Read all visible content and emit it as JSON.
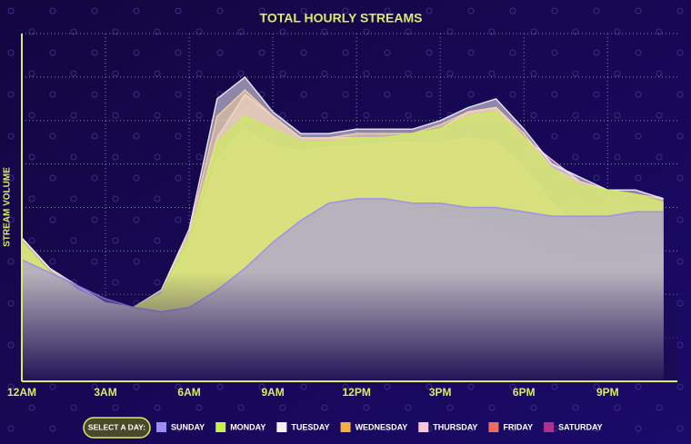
{
  "chart_data": {
    "type": "area",
    "title": "TOTAL HOURLY STREAMS",
    "y_label": "STREAM VOLUME",
    "legend_title": "SELECT A DAY:",
    "x": [
      0,
      1,
      2,
      3,
      4,
      5,
      6,
      7,
      8,
      9,
      10,
      11,
      12,
      13,
      14,
      15,
      16,
      17,
      18,
      19,
      20,
      21,
      22,
      23
    ],
    "xlim": [
      0,
      23.5
    ],
    "xticks": [
      {
        "value": 0,
        "label": "12AM"
      },
      {
        "value": 3,
        "label": "3AM"
      },
      {
        "value": 6,
        "label": "6AM"
      },
      {
        "value": 9,
        "label": "9AM"
      },
      {
        "value": 12,
        "label": "12PM"
      },
      {
        "value": 15,
        "label": "3PM"
      },
      {
        "value": 18,
        "label": "6PM"
      },
      {
        "value": 21,
        "label": "9PM"
      }
    ],
    "ylim": [
      0,
      8
    ],
    "yticks": [
      0,
      1,
      2,
      3,
      4,
      5,
      6,
      7,
      8
    ],
    "grid": true,
    "series": [
      {
        "name": "SUNDAY",
        "color": "#9a8cf0",
        "values": [
          2.8,
          2.5,
          2.2,
          1.9,
          1.7,
          1.6,
          1.7,
          2.1,
          2.6,
          3.2,
          3.7,
          4.1,
          4.2,
          4.2,
          4.1,
          4.1,
          4.0,
          4.0,
          3.9,
          3.8,
          3.8,
          3.8,
          3.9,
          3.9
        ]
      },
      {
        "name": "MONDAY",
        "color": "#c6f04c",
        "values": [
          3.2,
          2.5,
          2.1,
          1.8,
          1.7,
          2.0,
          3.3,
          5.5,
          6.1,
          5.8,
          5.5,
          5.5,
          5.6,
          5.6,
          5.7,
          5.8,
          6.1,
          6.2,
          5.6,
          4.9,
          4.5,
          4.4,
          4.3,
          4.1
        ]
      },
      {
        "name": "TUESDAY",
        "color": "#f4f0f8",
        "values": [
          3.3,
          2.6,
          2.2,
          1.8,
          1.7,
          2.1,
          3.5,
          6.5,
          7.0,
          6.2,
          5.7,
          5.7,
          5.8,
          5.8,
          5.8,
          6.0,
          6.3,
          6.5,
          5.8,
          5.0,
          4.7,
          4.4,
          4.4,
          4.2
        ]
      },
      {
        "name": "WEDNESDAY",
        "color": "#f5b041",
        "values": [
          3.3,
          2.6,
          2.1,
          1.8,
          1.7,
          2.1,
          3.4,
          6.1,
          6.7,
          6.1,
          5.6,
          5.6,
          5.7,
          5.7,
          5.7,
          5.9,
          6.2,
          6.3,
          5.7,
          4.9,
          4.6,
          4.4,
          4.3,
          4.2
        ]
      },
      {
        "name": "THURSDAY",
        "color": "#f7c6d8",
        "values": [
          3.2,
          2.5,
          2.1,
          1.8,
          1.7,
          2.0,
          3.3,
          5.6,
          6.6,
          6.1,
          5.6,
          5.6,
          5.6,
          5.6,
          5.7,
          5.8,
          6.2,
          6.3,
          5.6,
          5.1,
          4.6,
          4.4,
          4.3,
          4.1
        ]
      },
      {
        "name": "FRIDAY",
        "color": "#f26b5b",
        "values": [
          3.2,
          2.5,
          2.1,
          1.8,
          1.7,
          2.0,
          3.1,
          5.1,
          5.8,
          5.4,
          5.3,
          5.4,
          5.4,
          5.5,
          5.5,
          5.5,
          5.6,
          5.5,
          4.9,
          4.1,
          3.5,
          3.4,
          3.3,
          3.3
        ]
      },
      {
        "name": "SATURDAY",
        "color": "#b03090",
        "values": [
          2.7,
          2.4,
          2.1,
          1.8,
          1.7,
          1.7,
          2.1,
          2.7,
          3.3,
          3.9,
          4.3,
          4.5,
          4.4,
          4.3,
          4.1,
          3.9,
          3.8,
          3.6,
          3.3,
          3.0,
          2.9,
          2.8,
          2.9,
          3.0
        ]
      }
    ]
  }
}
